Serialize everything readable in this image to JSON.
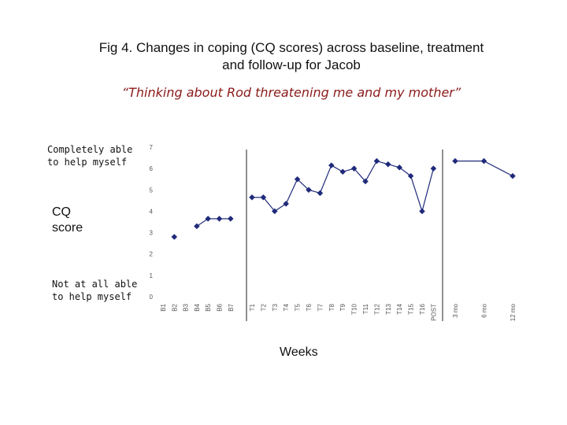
{
  "title_line1": "Fig 4. Changes in coping (CQ scores) across baseline, treatment",
  "title_line2": "and follow-up for Jacob",
  "subtitle": "“Thinking about Rod threatening me and my mother”",
  "annotations": {
    "top_line1": "Completely able",
    "top_line2": "to help myself",
    "bottom_line1": "Not at all able",
    "bottom_line2": "to help myself"
  },
  "colors": {
    "series": "#1f2a7a",
    "axis": "#555555",
    "text": "#111111"
  },
  "chart_data": {
    "type": "line",
    "title": "Fig 4. Changes in coping (CQ scores) across baseline, treatment and follow-up for Jacob",
    "subtitle": "“Thinking about Rod threatening me and my mother”",
    "ylabel_line1": "CQ",
    "ylabel_line2": "score",
    "xlabel": "Weeks",
    "ylim": [
      0,
      7
    ],
    "yticks": [
      "0",
      "1",
      "2",
      "3",
      "4",
      "5",
      "6",
      "7"
    ],
    "grid": false,
    "phases": [
      {
        "name": "baseline",
        "labels": [
          "B1",
          "B2",
          "B3",
          "B4",
          "B5",
          "B6",
          "B7"
        ],
        "values": [
          null,
          2.8,
          null,
          3.3,
          3.65,
          3.65,
          3.65
        ]
      },
      {
        "name": "treatment",
        "labels": [
          "T1",
          "T2",
          "T3",
          "T4",
          "T5",
          "T6",
          "T7",
          "T8",
          "T9",
          "T10",
          "T11",
          "T12",
          "T13",
          "T14",
          "T15",
          "T16",
          "POST"
        ],
        "values": [
          4.65,
          4.65,
          4.0,
          4.35,
          5.5,
          5.0,
          4.85,
          6.15,
          5.85,
          6.0,
          5.4,
          6.35,
          6.2,
          6.05,
          5.65,
          4.0,
          6.0
        ]
      },
      {
        "name": "follow-up",
        "labels": [
          "3 mo",
          "6 mo",
          "12 mo"
        ],
        "values": [
          6.35,
          6.35,
          5.65
        ]
      }
    ]
  }
}
